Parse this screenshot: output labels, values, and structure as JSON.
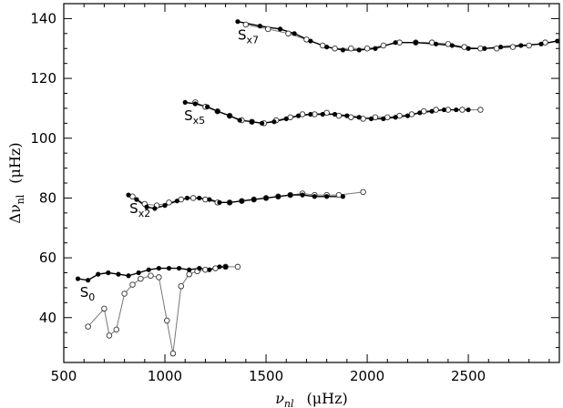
{
  "chart_data": {
    "type": "scatter",
    "xlabel": {
      "symbol": "ν",
      "sub": "nl",
      "unit": "(μHz)"
    },
    "ylabel": {
      "symbol": "Δν",
      "sub": "nl",
      "unit": "(μHz)"
    },
    "xlim": [
      500,
      2950
    ],
    "ylim": [
      25,
      145
    ],
    "x_ticks": [
      500,
      1000,
      1500,
      2000,
      2500
    ],
    "y_ticks": [
      40,
      60,
      80,
      100,
      120,
      140
    ],
    "grid": false,
    "series": [
      {
        "label_main": "S",
        "label_sub": "0",
        "label_at": [
          580,
          47
        ],
        "filled": {
          "x": [
            570,
            620,
            670,
            720,
            770,
            820,
            870,
            920,
            970,
            1020,
            1070,
            1120,
            1170,
            1220,
            1270,
            1300
          ],
          "y": [
            53,
            52.5,
            54.5,
            55,
            54.5,
            54,
            55,
            56,
            56.5,
            56.5,
            56.5,
            56,
            56.5,
            56,
            57,
            57
          ]
        },
        "open": {
          "x": [
            620,
            700,
            725,
            760,
            800,
            840,
            880,
            930,
            970,
            1010,
            1040,
            1080,
            1120,
            1160,
            1200,
            1250,
            1300,
            1360
          ],
          "y": [
            37,
            43,
            34,
            36,
            48,
            51,
            53,
            54,
            53.5,
            39,
            28,
            50.5,
            54.5,
            55.5,
            56,
            56.5,
            57,
            57
          ]
        }
      },
      {
        "label_main": "S",
        "label_sub": "x2",
        "label_at": [
          825,
          75
        ],
        "filled": {
          "x": [
            820,
            860,
            910,
            950,
            1000,
            1060,
            1110,
            1170,
            1220,
            1270,
            1320,
            1380,
            1440,
            1500,
            1560,
            1620,
            1680,
            1740,
            1800,
            1880
          ],
          "y": [
            81,
            79.5,
            77,
            76.5,
            77.5,
            79,
            80,
            80,
            79.5,
            78.5,
            78.5,
            79,
            79.5,
            80,
            80.5,
            81,
            81,
            80.5,
            80.5,
            80.5
          ]
        },
        "open": {
          "x": [
            840,
            900,
            960,
            1020,
            1080,
            1140,
            1200,
            1260,
            1320,
            1380,
            1440,
            1500,
            1560,
            1620,
            1680,
            1740,
            1800,
            1860,
            1980
          ],
          "y": [
            80.5,
            78,
            77.5,
            78.5,
            79.5,
            80,
            79.5,
            78.5,
            78.5,
            79,
            79.5,
            80,
            80.5,
            81,
            81.5,
            81,
            81,
            81,
            82
          ]
        }
      },
      {
        "label_main": "S",
        "label_sub": "x5",
        "label_at": [
          1095,
          106
        ],
        "filled": {
          "x": [
            1100,
            1150,
            1210,
            1260,
            1320,
            1370,
            1430,
            1480,
            1540,
            1600,
            1660,
            1720,
            1780,
            1840,
            1900,
            1960,
            2020,
            2080,
            2140,
            2200,
            2260,
            2320,
            2380,
            2440,
            2500
          ],
          "y": [
            112,
            111.5,
            110.5,
            109,
            107.5,
            106,
            105.5,
            105,
            105.5,
            106.5,
            107.5,
            108,
            108,
            108,
            107.5,
            107,
            106.5,
            106.5,
            107,
            107.5,
            108.5,
            109,
            109.5,
            109.5,
            109.5
          ]
        },
        "open": {
          "x": [
            1150,
            1200,
            1260,
            1320,
            1380,
            1430,
            1490,
            1550,
            1620,
            1680,
            1740,
            1800,
            1860,
            1920,
            1980,
            2040,
            2100,
            2160,
            2220,
            2280,
            2340,
            2400,
            2470,
            2560
          ],
          "y": [
            112,
            110.5,
            109,
            107.5,
            106,
            105.5,
            105,
            106,
            107,
            108,
            108,
            108.5,
            107.5,
            107,
            106.5,
            107,
            107,
            107.5,
            108,
            109,
            109.5,
            109.5,
            109.5,
            109.5
          ]
        }
      },
      {
        "label_main": "S",
        "label_sub": "x7",
        "label_at": [
          1360,
          133
        ],
        "filled": {
          "x": [
            1360,
            1470,
            1570,
            1640,
            1720,
            1800,
            1880,
            1960,
            2040,
            2140,
            2240,
            2340,
            2420,
            2500,
            2580,
            2660,
            2760,
            2860,
            2940
          ],
          "y": [
            139,
            137.5,
            136.5,
            135,
            132.5,
            130.5,
            129.5,
            129.5,
            130,
            132,
            132,
            131.5,
            131,
            130,
            130,
            130.5,
            131,
            131.5,
            132.5
          ]
        },
        "open": {
          "x": [
            1400,
            1510,
            1610,
            1700,
            1780,
            1840,
            1920,
            2000,
            2080,
            2160,
            2240,
            2320,
            2400,
            2480,
            2560,
            2640,
            2720,
            2800,
            2880
          ],
          "y": [
            138,
            136.5,
            135,
            133,
            131,
            130,
            130,
            130,
            131,
            132,
            132,
            132,
            131.5,
            130.5,
            130,
            130,
            130.5,
            131,
            132
          ]
        }
      }
    ]
  }
}
